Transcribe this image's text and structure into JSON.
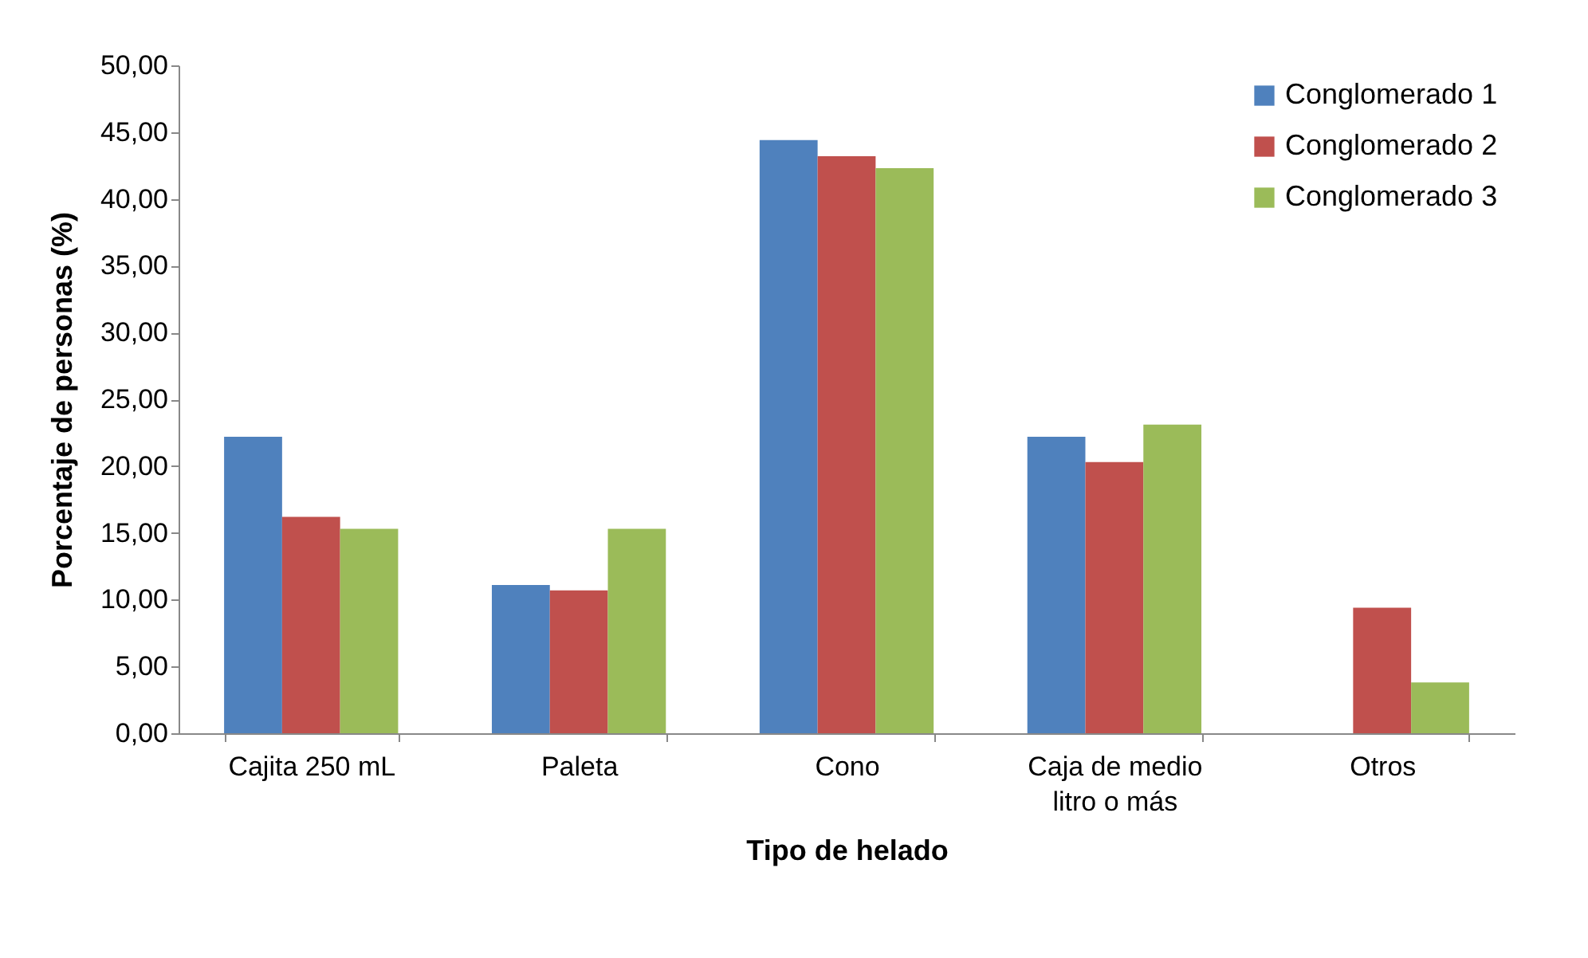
{
  "chart_data": {
    "type": "bar",
    "xlabel": "Tipo de helado",
    "ylabel": "Porcentaje de personas (%)",
    "categories": [
      "Cajita 250 mL",
      "Paleta",
      "Cono",
      "Caja de medio litro o más",
      "Otros"
    ],
    "series": [
      {
        "name": "Conglomerado 1",
        "color": "#4f81bd",
        "values": [
          22.2,
          11.1,
          44.4,
          22.2,
          0
        ]
      },
      {
        "name": "Conglomerado 2",
        "color": "#c0504d",
        "values": [
          16.2,
          10.7,
          43.2,
          20.3,
          9.4
        ]
      },
      {
        "name": "Conglomerado 3",
        "color": "#9bbb59",
        "values": [
          15.3,
          15.3,
          42.3,
          23.1,
          3.8
        ]
      }
    ],
    "ylim": [
      0,
      50
    ],
    "yticks": [
      {
        "value": 0,
        "label": "0,00"
      },
      {
        "value": 5,
        "label": "5,00"
      },
      {
        "value": 10,
        "label": "10,00"
      },
      {
        "value": 15,
        "label": "15,00"
      },
      {
        "value": 20,
        "label": "20,00"
      },
      {
        "value": 25,
        "label": "25,00"
      },
      {
        "value": 30,
        "label": "30,00"
      },
      {
        "value": 35,
        "label": "35,00"
      },
      {
        "value": 40,
        "label": "40,00"
      },
      {
        "value": 45,
        "label": "45,00"
      },
      {
        "value": 50,
        "label": "50,00"
      }
    ],
    "grid": false,
    "legend": "top right"
  }
}
